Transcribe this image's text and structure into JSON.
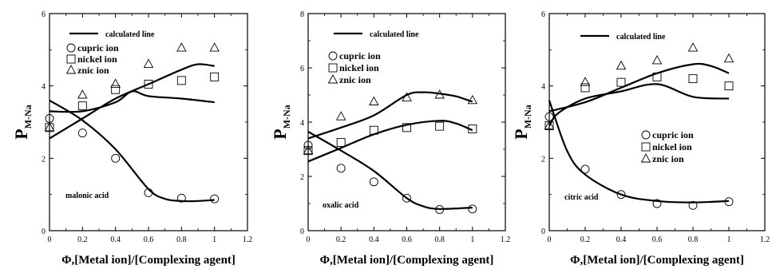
{
  "chart_data": [
    {
      "type": "scatter",
      "xlabel": "Φ,[Metal ion]/[Complexing agent]",
      "ylabel": "P",
      "ylabel_sub": "M-Na",
      "annotation": "malonic acid",
      "xlim": [
        0,
        1.2
      ],
      "ylim": [
        0,
        6
      ],
      "xticks": [
        "0",
        "0.2",
        "0.4",
        "0.6",
        "0.8",
        "1",
        "1.2"
      ],
      "yticks": [
        "0",
        "2",
        "4",
        "6"
      ],
      "legend_line": "calculated line",
      "series": [
        {
          "name": "cupric ion",
          "marker": "circle",
          "x": [
            0,
            0.2,
            0.4,
            0.6,
            0.8,
            1.0
          ],
          "y": [
            3.1,
            2.7,
            2.0,
            1.05,
            0.9,
            0.88
          ]
        },
        {
          "name": "nickel ion",
          "marker": "square",
          "x": [
            0,
            0.2,
            0.4,
            0.6,
            0.8,
            1.0
          ],
          "y": [
            2.85,
            3.45,
            3.9,
            4.05,
            4.15,
            4.25
          ]
        },
        {
          "name": "znic ion",
          "marker": "triangle",
          "x": [
            0,
            0.2,
            0.4,
            0.6,
            0.8,
            1.0
          ],
          "y": [
            2.85,
            3.75,
            4.05,
            4.6,
            5.05,
            5.05
          ]
        }
      ],
      "curves": [
        {
          "x": [
            0,
            0.2,
            0.4,
            0.6,
            0.7,
            0.8,
            0.9,
            1.0
          ],
          "y": [
            3.6,
            3.05,
            2.25,
            1.15,
            0.88,
            0.82,
            0.82,
            0.85
          ]
        },
        {
          "x": [
            0,
            0.2,
            0.4,
            0.5,
            0.6,
            0.8,
            1.0
          ],
          "y": [
            3.3,
            3.3,
            3.55,
            3.85,
            3.72,
            3.65,
            3.55
          ]
        },
        {
          "x": [
            0,
            0.2,
            0.4,
            0.6,
            0.8,
            0.9,
            1.0
          ],
          "y": [
            2.55,
            3.1,
            3.65,
            4.05,
            4.45,
            4.6,
            4.55
          ]
        }
      ]
    },
    {
      "type": "scatter",
      "xlabel": "Φ,[Metal ion]/[Complexing agent]",
      "ylabel": "P",
      "ylabel_sub": "M-Na",
      "annotation": "oxalic acid",
      "xlim": [
        0,
        1.2
      ],
      "ylim": [
        0,
        8
      ],
      "xticks": [
        "0",
        "0.2",
        "0.4",
        "0.6",
        "0.8",
        "1",
        "1.2"
      ],
      "yticks": [
        "0",
        "2",
        "4",
        "6",
        "8"
      ],
      "legend_line": "calculated line",
      "series": [
        {
          "name": "cupric ion",
          "marker": "circle",
          "x": [
            0,
            0.2,
            0.4,
            0.6,
            0.8,
            1.0
          ],
          "y": [
            3.15,
            2.3,
            1.8,
            1.2,
            0.78,
            0.8
          ]
        },
        {
          "name": "nickel ion",
          "marker": "square",
          "x": [
            0,
            0.2,
            0.4,
            0.6,
            0.8,
            1.0
          ],
          "y": [
            2.95,
            3.25,
            3.7,
            3.8,
            3.85,
            3.75
          ]
        },
        {
          "name": "znic ion",
          "marker": "triangle",
          "x": [
            0,
            0.2,
            0.4,
            0.6,
            0.8,
            1.0
          ],
          "y": [
            2.95,
            4.2,
            4.75,
            4.9,
            5.0,
            4.8
          ]
        }
      ],
      "curves": [
        {
          "x": [
            0,
            0.2,
            0.4,
            0.6,
            0.7,
            0.8,
            1.0
          ],
          "y": [
            3.65,
            2.95,
            2.2,
            1.2,
            0.9,
            0.8,
            0.85
          ]
        },
        {
          "x": [
            0,
            0.2,
            0.4,
            0.6,
            0.7,
            0.8,
            0.9,
            1.0
          ],
          "y": [
            3.4,
            3.8,
            4.25,
            5.0,
            5.1,
            5.05,
            4.95,
            4.75
          ]
        },
        {
          "x": [
            0,
            0.2,
            0.4,
            0.6,
            0.8,
            0.9,
            1.0
          ],
          "y": [
            2.55,
            3.05,
            3.55,
            3.9,
            4.05,
            3.95,
            3.7
          ]
        }
      ]
    },
    {
      "type": "scatter",
      "xlabel": "Φ,[Metal ion]/[Complexing agent]",
      "ylabel": "P",
      "ylabel_sub": "M-Na",
      "annotation": "citric acid",
      "xlim": [
        0,
        1.2
      ],
      "ylim": [
        0,
        6
      ],
      "xticks": [
        "0",
        "0.2",
        "0.4",
        "0.6",
        "0.8",
        "1",
        "1.2"
      ],
      "yticks": [
        "0",
        "2",
        "4",
        "6"
      ],
      "legend_line": "calculated line",
      "series": [
        {
          "name": "cupric ion",
          "marker": "circle",
          "x": [
            0,
            0.2,
            0.4,
            0.6,
            0.8,
            1.0
          ],
          "y": [
            3.15,
            1.7,
            1.0,
            0.75,
            0.7,
            0.8
          ]
        },
        {
          "name": "nickel ion",
          "marker": "square",
          "x": [
            0,
            0.2,
            0.4,
            0.6,
            0.8,
            1.0
          ],
          "y": [
            2.9,
            3.95,
            4.1,
            4.25,
            4.2,
            4.0
          ]
        },
        {
          "name": "znic ion",
          "marker": "triangle",
          "x": [
            0,
            0.2,
            0.4,
            0.6,
            0.8,
            1.0
          ],
          "y": [
            2.9,
            4.1,
            4.55,
            4.7,
            5.05,
            4.75
          ]
        }
      ],
      "curves": [
        {
          "x": [
            0,
            0.1,
            0.2,
            0.4,
            0.6,
            0.8,
            1.0
          ],
          "y": [
            3.6,
            2.2,
            1.55,
            1.0,
            0.82,
            0.78,
            0.82
          ]
        },
        {
          "x": [
            0,
            0.05,
            0.2,
            0.4,
            0.6,
            0.8,
            1.0
          ],
          "y": [
            2.9,
            3.25,
            3.65,
            3.85,
            4.05,
            3.7,
            3.65
          ]
        },
        {
          "x": [
            0,
            0.2,
            0.4,
            0.6,
            0.8,
            0.9,
            1.0
          ],
          "y": [
            3.3,
            3.55,
            3.95,
            4.35,
            4.6,
            4.55,
            4.35
          ]
        }
      ]
    }
  ]
}
